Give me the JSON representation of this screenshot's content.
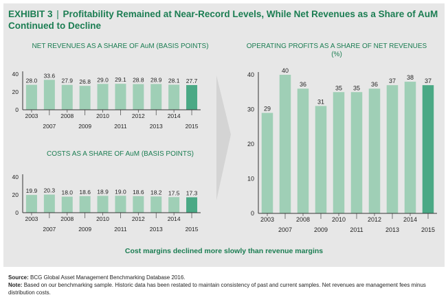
{
  "exhibit": {
    "label": "EXHIBIT 3",
    "title": "Profitability Remained at Near-Record Levels, While Net Revenues as a Share of AuM Continued to Decline"
  },
  "caption": "Cost margins declined more slowly than revenue margins",
  "source": {
    "label": "Source:",
    "text": "BCG Global Asset Management Benchmarking Database 2016."
  },
  "note": {
    "label": "Note:",
    "text": "Based on our benchmarking sample. Historic data has been restated to maintain consistency of past and current samples. Net revenues are management fees minus distribution costs."
  },
  "colors": {
    "bar": "#9fcfb6",
    "highlight": "#4aa985",
    "title": "#1b7d52",
    "panel": "#e7e7e7",
    "arrow": "#d4d4d4"
  },
  "chart_data": [
    {
      "type": "bar",
      "title": "NET REVENUES AS A SHARE OF AuM (BASIS POINTS)",
      "categories": [
        "2003",
        "2007",
        "2008",
        "2009",
        "2010",
        "2011",
        "2012",
        "2013",
        "2014",
        "2015"
      ],
      "values": [
        28.0,
        33.6,
        27.9,
        26.8,
        29.0,
        29.1,
        28.8,
        28.9,
        28.1,
        27.7
      ],
      "labels": [
        "28.0",
        "33.6",
        "27.9",
        "26.8",
        "29.0",
        "29.1",
        "28.8",
        "28.9",
        "28.1",
        "27.7"
      ],
      "yticks": [
        "0",
        "20",
        "40"
      ],
      "ylim": [
        0,
        40
      ],
      "highlight": "2015"
    },
    {
      "type": "bar",
      "title": "COSTS AS A SHARE OF AuM (BASIS POINTS)",
      "categories": [
        "2003",
        "2007",
        "2008",
        "2009",
        "2010",
        "2011",
        "2012",
        "2013",
        "2014",
        "2015"
      ],
      "values": [
        19.9,
        20.3,
        18.0,
        18.6,
        18.9,
        19.0,
        18.6,
        18.2,
        17.5,
        17.3
      ],
      "labels": [
        "19.9",
        "20.3",
        "18.0",
        "18.6",
        "18.9",
        "19.0",
        "18.6",
        "18.2",
        "17.5",
        "17.3"
      ],
      "yticks": [
        "0",
        "20",
        "40"
      ],
      "ylim": [
        0,
        40
      ],
      "highlight": "2015"
    },
    {
      "type": "bar",
      "title": "OPERATING PROFITS AS A SHARE OF NET REVENUES (%)",
      "categories": [
        "2003",
        "2007",
        "2008",
        "2009",
        "2010",
        "2011",
        "2012",
        "2013",
        "2014",
        "2015"
      ],
      "values": [
        29,
        40,
        36,
        31,
        35,
        35,
        36,
        37,
        38,
        37
      ],
      "labels": [
        "29",
        "40",
        "36",
        "31",
        "35",
        "35",
        "36",
        "37",
        "38",
        "37"
      ],
      "yticks": [
        "0",
        "10",
        "20",
        "30",
        "40"
      ],
      "ylim": [
        0,
        40
      ],
      "highlight": "2015"
    }
  ]
}
